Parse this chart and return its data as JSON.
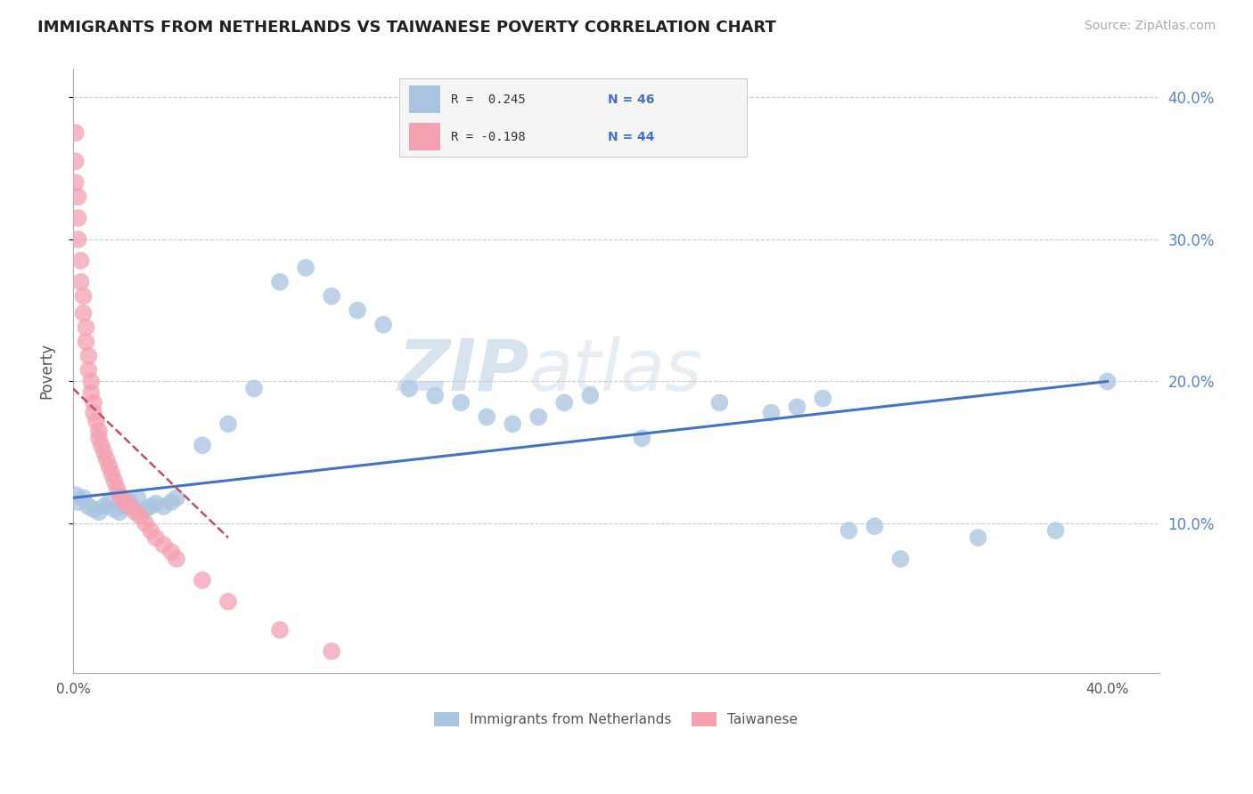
{
  "title": "IMMIGRANTS FROM NETHERLANDS VS TAIWANESE POVERTY CORRELATION CHART",
  "source_text": "Source: ZipAtlas.com",
  "ylabel": "Poverty",
  "xlim": [
    0.0,
    0.42
  ],
  "ylim": [
    -0.005,
    0.42
  ],
  "yticks": [
    0.1,
    0.2,
    0.3,
    0.4
  ],
  "ytick_labels": [
    "10.0%",
    "20.0%",
    "30.0%",
    "40.0%"
  ],
  "legend_label1": "Immigrants from Netherlands",
  "legend_label2": "Taiwanese",
  "color_blue": "#a8c4e0",
  "color_pink": "#f4a0b0",
  "line_color_blue": "#4472c4",
  "line_color_pink": "#c0506a",
  "blue_scatter_x": [
    0.001,
    0.002,
    0.004,
    0.006,
    0.008,
    0.01,
    0.012,
    0.014,
    0.016,
    0.018,
    0.02,
    0.022,
    0.025,
    0.028,
    0.03,
    0.032,
    0.035,
    0.038,
    0.04,
    0.05,
    0.06,
    0.07,
    0.08,
    0.09,
    0.1,
    0.11,
    0.12,
    0.13,
    0.14,
    0.15,
    0.16,
    0.17,
    0.18,
    0.19,
    0.2,
    0.22,
    0.25,
    0.3,
    0.32,
    0.35,
    0.38,
    0.4,
    0.27,
    0.28,
    0.29,
    0.31
  ],
  "blue_scatter_y": [
    0.12,
    0.115,
    0.118,
    0.112,
    0.11,
    0.108,
    0.112,
    0.115,
    0.11,
    0.108,
    0.112,
    0.115,
    0.118,
    0.11,
    0.112,
    0.114,
    0.112,
    0.115,
    0.118,
    0.155,
    0.17,
    0.195,
    0.27,
    0.28,
    0.26,
    0.25,
    0.24,
    0.195,
    0.19,
    0.185,
    0.175,
    0.17,
    0.175,
    0.185,
    0.19,
    0.16,
    0.185,
    0.095,
    0.075,
    0.09,
    0.095,
    0.2,
    0.178,
    0.182,
    0.188,
    0.098
  ],
  "pink_scatter_x": [
    0.001,
    0.001,
    0.001,
    0.002,
    0.002,
    0.002,
    0.003,
    0.003,
    0.004,
    0.004,
    0.005,
    0.005,
    0.006,
    0.006,
    0.007,
    0.007,
    0.008,
    0.008,
    0.009,
    0.01,
    0.01,
    0.011,
    0.012,
    0.013,
    0.014,
    0.015,
    0.016,
    0.017,
    0.018,
    0.019,
    0.02,
    0.022,
    0.024,
    0.026,
    0.028,
    0.03,
    0.032,
    0.035,
    0.038,
    0.04,
    0.05,
    0.06,
    0.08,
    0.1
  ],
  "pink_scatter_y": [
    0.375,
    0.355,
    0.34,
    0.33,
    0.315,
    0.3,
    0.285,
    0.27,
    0.26,
    0.248,
    0.238,
    0.228,
    0.218,
    0.208,
    0.2,
    0.192,
    0.185,
    0.178,
    0.172,
    0.165,
    0.16,
    0.155,
    0.15,
    0.145,
    0.14,
    0.135,
    0.13,
    0.125,
    0.12,
    0.118,
    0.115,
    0.112,
    0.108,
    0.105,
    0.1,
    0.095,
    0.09,
    0.085,
    0.08,
    0.075,
    0.06,
    0.045,
    0.025,
    0.01
  ],
  "blue_line_x": [
    0.0,
    0.4
  ],
  "blue_line_y": [
    0.118,
    0.2
  ],
  "pink_line_x": [
    0.0,
    0.06
  ],
  "pink_line_y": [
    0.195,
    0.09
  ]
}
